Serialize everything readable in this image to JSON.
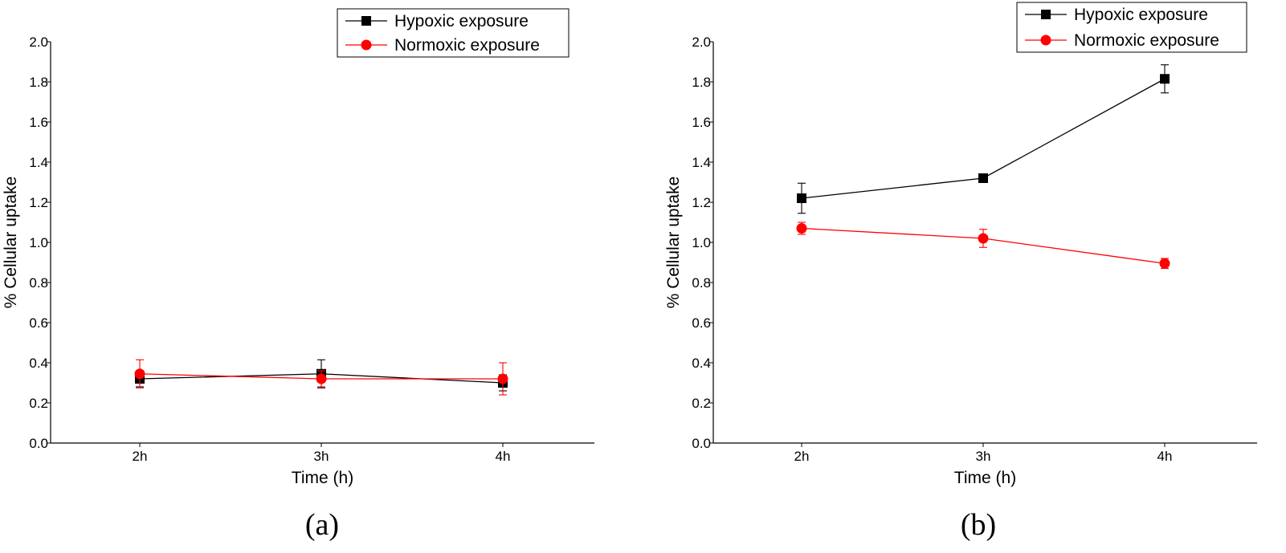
{
  "chart_data": [
    {
      "type": "line",
      "panel_label": "(a)",
      "xlabel": "Time (h)",
      "ylabel": "% Cellular uptake",
      "categories": [
        "2h",
        "3h",
        "4h"
      ],
      "ylim": [
        0,
        2.0
      ],
      "yticks": [
        "0.0",
        "0.2",
        "0.4",
        "0.6",
        "0.8",
        "1.0",
        "1.2",
        "1.4",
        "1.6",
        "1.8",
        "2.0"
      ],
      "grid": false,
      "legend_position": "top-right",
      "series": [
        {
          "name": "Hypoxic exposure",
          "color": "#000000",
          "marker": "square",
          "values": [
            0.32,
            0.345,
            0.3
          ],
          "errors": [
            0.04,
            0.07,
            0.04
          ]
        },
        {
          "name": "Normoxic exposure",
          "color": "#ff0000",
          "marker": "circle",
          "values": [
            0.345,
            0.32,
            0.32
          ],
          "errors": [
            0.07,
            0.04,
            0.08
          ]
        }
      ]
    },
    {
      "type": "line",
      "panel_label": "(b)",
      "xlabel": "Time (h)",
      "ylabel": "% Cellular uptake",
      "categories": [
        "2h",
        "3h",
        "4h"
      ],
      "ylim": [
        0,
        2.0
      ],
      "yticks": [
        "0.0",
        "0.2",
        "0.4",
        "0.6",
        "0.8",
        "1.0",
        "1.2",
        "1.4",
        "1.6",
        "1.8",
        "2.0"
      ],
      "grid": false,
      "legend_position": "top-right",
      "series": [
        {
          "name": "Hypoxic exposure",
          "color": "#000000",
          "marker": "square",
          "values": [
            1.22,
            1.32,
            1.815
          ],
          "errors": [
            0.075,
            0.01,
            0.07
          ]
        },
        {
          "name": "Normoxic exposure",
          "color": "#ff0000",
          "marker": "circle",
          "values": [
            1.07,
            1.02,
            0.895
          ],
          "errors": [
            0.03,
            0.045,
            0.025
          ]
        }
      ]
    }
  ]
}
